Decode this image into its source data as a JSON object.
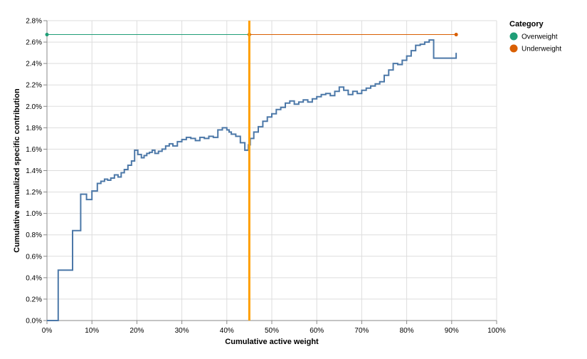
{
  "chart_data": {
    "type": "line",
    "xlabel": "Cumulative active weight",
    "ylabel": "Cumulative annualized specific contribution",
    "xlim": [
      0,
      1
    ],
    "ylim": [
      0,
      0.028
    ],
    "x_ticks": [
      {
        "value": 0,
        "label": "0%"
      },
      {
        "value": 0.1,
        "label": "10%"
      },
      {
        "value": 0.2,
        "label": "20%"
      },
      {
        "value": 0.3,
        "label": "30%"
      },
      {
        "value": 0.4,
        "label": "40%"
      },
      {
        "value": 0.5,
        "label": "50%"
      },
      {
        "value": 0.6,
        "label": "60%"
      },
      {
        "value": 0.7,
        "label": "70%"
      },
      {
        "value": 0.8,
        "label": "80%"
      },
      {
        "value": 0.9,
        "label": "90%"
      },
      {
        "value": 1.0,
        "label": "100%"
      }
    ],
    "y_ticks": [
      {
        "value": 0,
        "label": "0.0%"
      },
      {
        "value": 0.002,
        "label": "0.2%"
      },
      {
        "value": 0.004,
        "label": "0.4%"
      },
      {
        "value": 0.006,
        "label": "0.6%"
      },
      {
        "value": 0.008,
        "label": "0.8%"
      },
      {
        "value": 0.01,
        "label": "1.0%"
      },
      {
        "value": 0.012,
        "label": "1.2%"
      },
      {
        "value": 0.014,
        "label": "1.4%"
      },
      {
        "value": 0.016,
        "label": "1.6%"
      },
      {
        "value": 0.018,
        "label": "1.8%"
      },
      {
        "value": 0.02,
        "label": "2.0%"
      },
      {
        "value": 0.022,
        "label": "2.2%"
      },
      {
        "value": 0.024,
        "label": "2.4%"
      },
      {
        "value": 0.026,
        "label": "2.6%"
      },
      {
        "value": 0.028,
        "label": "2.8%"
      }
    ],
    "grid": true,
    "line_color": "#4c78a8",
    "step_series": {
      "interpolation": "step-after",
      "x": [
        0,
        0.025,
        0.057,
        0.075,
        0.088,
        0.1,
        0.112,
        0.12,
        0.128,
        0.135,
        0.142,
        0.15,
        0.158,
        0.165,
        0.172,
        0.18,
        0.188,
        0.195,
        0.202,
        0.21,
        0.216,
        0.222,
        0.228,
        0.234,
        0.24,
        0.248,
        0.256,
        0.264,
        0.272,
        0.28,
        0.29,
        0.3,
        0.31,
        0.32,
        0.33,
        0.34,
        0.35,
        0.36,
        0.37,
        0.38,
        0.39,
        0.4,
        0.405,
        0.41,
        0.42,
        0.43,
        0.44,
        0.448,
        0.452,
        0.46,
        0.47,
        0.48,
        0.49,
        0.5,
        0.51,
        0.52,
        0.53,
        0.54,
        0.55,
        0.56,
        0.57,
        0.58,
        0.59,
        0.6,
        0.61,
        0.62,
        0.63,
        0.64,
        0.65,
        0.66,
        0.67,
        0.68,
        0.69,
        0.7,
        0.71,
        0.72,
        0.73,
        0.74,
        0.75,
        0.76,
        0.77,
        0.78,
        0.79,
        0.8,
        0.81,
        0.82,
        0.83,
        0.84,
        0.85,
        0.86,
        0.87,
        0.905,
        0.91
      ],
      "y": [
        0,
        0.0047,
        0.0084,
        0.0118,
        0.0113,
        0.0121,
        0.0128,
        0.013,
        0.0132,
        0.0131,
        0.0133,
        0.0136,
        0.0134,
        0.0138,
        0.0141,
        0.0145,
        0.0149,
        0.0159,
        0.0155,
        0.0152,
        0.0154,
        0.0156,
        0.0157,
        0.0159,
        0.0156,
        0.0158,
        0.016,
        0.0163,
        0.0165,
        0.0163,
        0.0167,
        0.0169,
        0.0171,
        0.017,
        0.0168,
        0.0171,
        0.017,
        0.0172,
        0.0171,
        0.0178,
        0.018,
        0.0178,
        0.0176,
        0.0174,
        0.0172,
        0.0166,
        0.0159,
        0.0164,
        0.017,
        0.0176,
        0.0181,
        0.0186,
        0.019,
        0.0193,
        0.0197,
        0.0199,
        0.0203,
        0.0205,
        0.0202,
        0.0204,
        0.0206,
        0.0204,
        0.0207,
        0.0209,
        0.0211,
        0.0212,
        0.021,
        0.0214,
        0.0218,
        0.0215,
        0.0211,
        0.0214,
        0.0212,
        0.0215,
        0.0217,
        0.0219,
        0.0221,
        0.0223,
        0.0229,
        0.0234,
        0.024,
        0.0239,
        0.0243,
        0.0247,
        0.0252,
        0.0257,
        0.0258,
        0.026,
        0.0262,
        0.0245,
        0.0245,
        0.0245,
        0.025
      ]
    },
    "reference_line": {
      "x": 0.45,
      "color": "#ff9f00"
    },
    "horizontal_segments": [
      {
        "category": "Overweight",
        "color": "#1f9e77",
        "x": [
          0,
          0.45
        ],
        "y": 0.0267
      },
      {
        "category": "Underweight",
        "color": "#d95f02",
        "x": [
          0.45,
          0.91
        ],
        "y": 0.0267
      }
    ],
    "legend": {
      "title": "Category",
      "position": "right",
      "entries": [
        {
          "label": "Overweight",
          "color": "#1f9e77"
        },
        {
          "label": "Underweight",
          "color": "#d95f02"
        }
      ]
    }
  }
}
